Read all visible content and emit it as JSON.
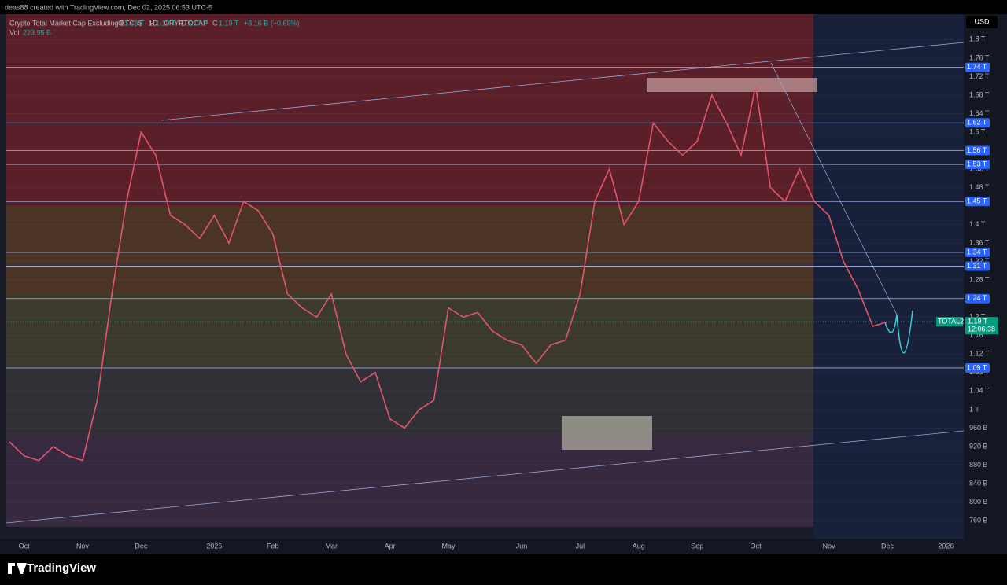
{
  "header": "deas88 created with TradingView.com, Dec 02, 2025 06:53 UTC-5",
  "legend": {
    "symbol": "Crypto Total Market Cap Excluding BTC, $ · 1D · CRYPTOCAP",
    "ohlc": [
      {
        "key": "O",
        "value": "1.18 T"
      },
      {
        "key": "H",
        "value": "1.19 T"
      },
      {
        "key": "L",
        "value": "1.17 T"
      },
      {
        "key": "C",
        "value": "1.19 T"
      }
    ],
    "change": "+8.16 B (+0.69%)",
    "vol_label": "Vol",
    "vol_value": "223.95 B"
  },
  "currency": "USD",
  "footer": "TradingView",
  "chart_data": {
    "type": "line",
    "categories": [
      null,
      "Oct",
      null,
      null,
      null,
      "Nov",
      null,
      null,
      null,
      "Dec",
      null,
      null,
      null,
      null,
      "2025",
      null,
      null,
      null,
      "Feb",
      null,
      null,
      null,
      "Mar",
      null,
      null,
      null,
      "Apr",
      null,
      null,
      null,
      "May",
      null,
      null,
      null,
      null,
      "Jun",
      null,
      null,
      null,
      "Jul",
      null,
      null,
      null,
      "Aug",
      null,
      null,
      null,
      "Sep",
      null,
      null,
      null,
      "Oct",
      null,
      null,
      null,
      null,
      "Nov",
      null,
      null,
      null,
      "Dec",
      null,
      null,
      null,
      "2026",
      null
    ],
    "series": [
      {
        "name": "TOTAL2",
        "color": "#e0566a",
        "values": [
          0.93,
          0.9,
          0.89,
          0.92,
          0.9,
          0.89,
          1.02,
          1.25,
          1.45,
          1.6,
          1.55,
          1.42,
          1.4,
          1.37,
          1.42,
          1.36,
          1.45,
          1.43,
          1.38,
          1.25,
          1.22,
          1.2,
          1.25,
          1.12,
          1.06,
          1.08,
          0.98,
          0.96,
          1.0,
          1.02,
          1.22,
          1.2,
          1.21,
          1.17,
          1.15,
          1.14,
          1.1,
          1.14,
          1.15,
          1.25,
          1.45,
          1.52,
          1.4,
          1.45,
          1.62,
          1.58,
          1.55,
          1.58,
          1.68,
          1.62,
          1.55,
          1.7,
          1.48,
          1.45,
          1.52,
          1.45,
          1.42,
          1.32,
          1.26,
          1.18,
          1.19,
          null,
          null,
          null,
          null,
          null
        ]
      }
    ],
    "last_price": {
      "value": 1.19,
      "label": "1.19 T",
      "countdown": "12:06:38"
    },
    "ylim": [
      0.721,
      1.855
    ],
    "yticks": [
      {
        "value": 1.8,
        "label": "1.8 T"
      },
      {
        "value": 1.76,
        "label": "1.76 T"
      },
      {
        "value": 1.72,
        "label": "1.72 T"
      },
      {
        "value": 1.68,
        "label": "1.68 T"
      },
      {
        "value": 1.64,
        "label": "1.64 T"
      },
      {
        "value": 1.6,
        "label": "1.6 T"
      },
      {
        "value": 1.52,
        "label": "1.52 T"
      },
      {
        "value": 1.48,
        "label": "1.48 T"
      },
      {
        "value": 1.4,
        "label": "1.4 T"
      },
      {
        "value": 1.36,
        "label": "1.36 T"
      },
      {
        "value": 1.32,
        "label": "1.32 T"
      },
      {
        "value": 1.28,
        "label": "1.28 T"
      },
      {
        "value": 1.2,
        "label": "1.2 T"
      },
      {
        "value": 1.16,
        "label": "1.16 T"
      },
      {
        "value": 1.12,
        "label": "1.12 T"
      },
      {
        "value": 1.08,
        "label": "1.08 T"
      },
      {
        "value": 1.04,
        "label": "1.04 T"
      },
      {
        "value": 1,
        "label": "1 T"
      },
      {
        "value": 0.96,
        "label": "960 B"
      },
      {
        "value": 0.92,
        "label": "920 B"
      },
      {
        "value": 0.88,
        "label": "880 B"
      },
      {
        "value": 0.84,
        "label": "840 B"
      },
      {
        "value": 0.8,
        "label": "800 B"
      },
      {
        "value": 0.76,
        "label": "760 B"
      }
    ],
    "levels": [
      {
        "value": 1.74,
        "label": "1.74 T"
      },
      {
        "value": 1.62,
        "label": "1.62 T"
      },
      {
        "value": 1.56,
        "label": "1.56 T"
      },
      {
        "value": 1.53,
        "label": "1.53 T"
      },
      {
        "value": 1.45,
        "label": "1.45 T"
      },
      {
        "value": 1.34,
        "label": "1.34 T"
      },
      {
        "value": 1.31,
        "label": "1.31 T"
      },
      {
        "value": 1.24,
        "label": "1.24 T"
      },
      {
        "value": 1.09,
        "label": "1.09 T"
      }
    ]
  }
}
